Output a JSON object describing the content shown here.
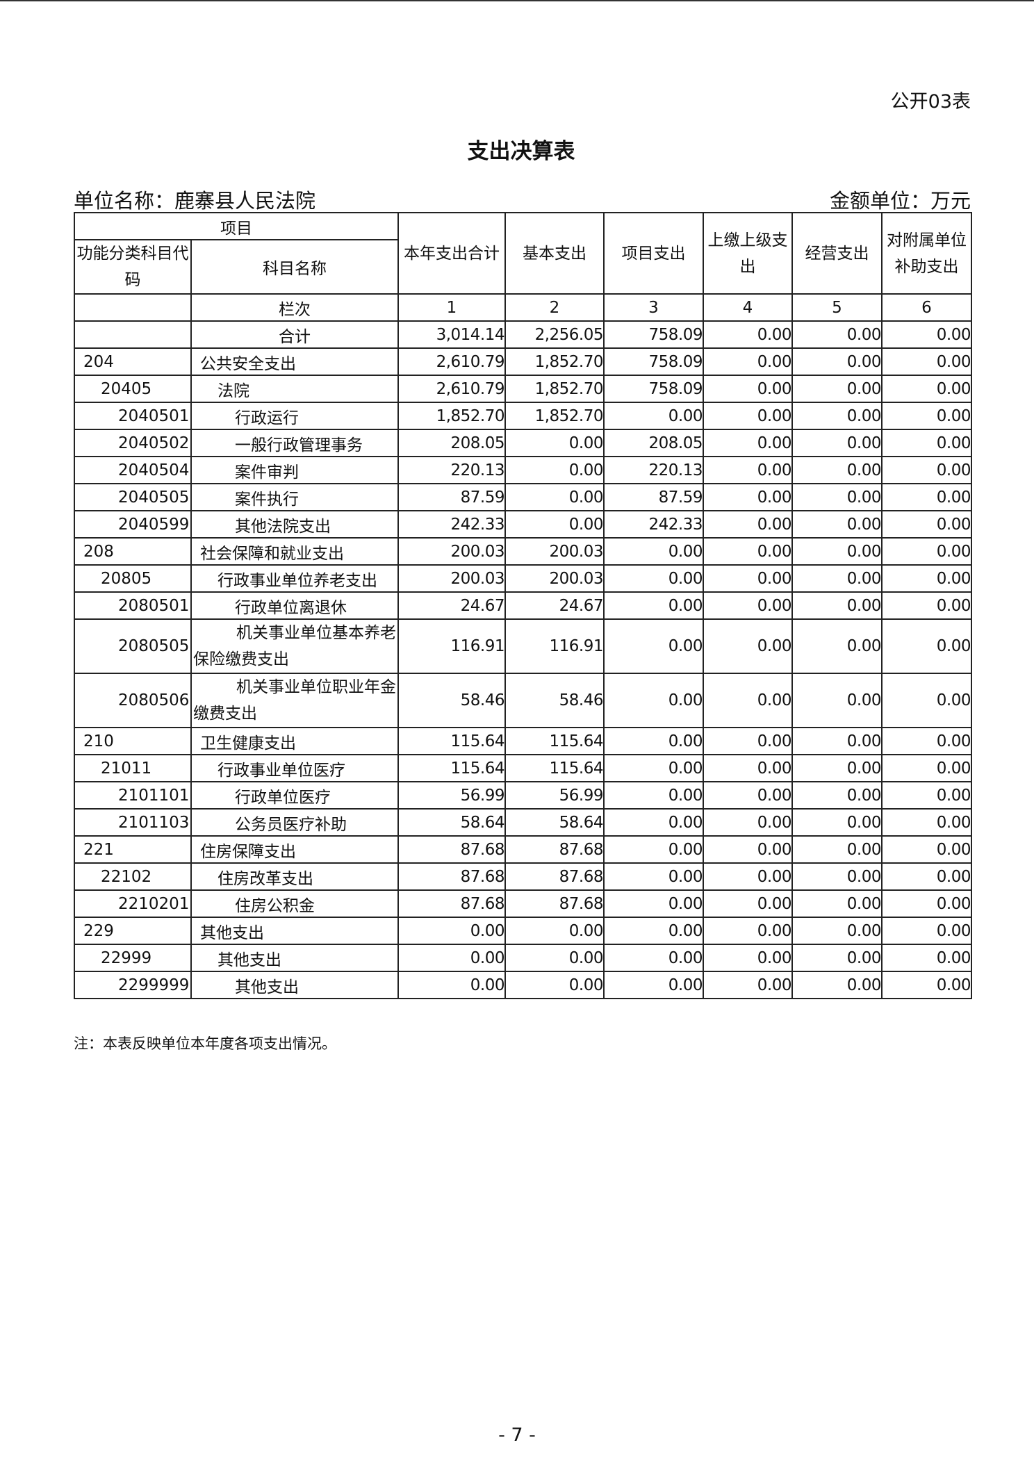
{
  "form_no": "公开03表",
  "title": "支出决算表",
  "unit_label": "单位名称：鹿寨县人民法院",
  "money_unit": "金额单位：万元",
  "header": {
    "item": "项目",
    "code": "功能分类科目代码",
    "name": "科目名称",
    "cols": [
      "本年支出合计",
      "基本支出",
      "项目支出",
      "上缴上级支出",
      "经营支出",
      "对附属单位补助支出"
    ],
    "col_no_label": "栏次",
    "col_nos": [
      "1",
      "2",
      "3",
      "4",
      "5",
      "6"
    ]
  },
  "total": {
    "name": "合计",
    "values": [
      "3,014.14",
      "2,256.05",
      "758.09",
      "0.00",
      "0.00",
      "0.00"
    ]
  },
  "rows": [
    {
      "code": "204",
      "name": "公共安全支出",
      "level": 1,
      "values": [
        "2,610.79",
        "1,852.70",
        "758.09",
        "0.00",
        "0.00",
        "0.00"
      ]
    },
    {
      "code": "20405",
      "name": "法院",
      "level": 2,
      "values": [
        "2,610.79",
        "1,852.70",
        "758.09",
        "0.00",
        "0.00",
        "0.00"
      ]
    },
    {
      "code": "2040501",
      "name": "行政运行",
      "level": 3,
      "values": [
        "1,852.70",
        "1,852.70",
        "0.00",
        "0.00",
        "0.00",
        "0.00"
      ]
    },
    {
      "code": "2040502",
      "name": "一般行政管理事务",
      "level": 3,
      "values": [
        "208.05",
        "0.00",
        "208.05",
        "0.00",
        "0.00",
        "0.00"
      ]
    },
    {
      "code": "2040504",
      "name": "案件审判",
      "level": 3,
      "values": [
        "220.13",
        "0.00",
        "220.13",
        "0.00",
        "0.00",
        "0.00"
      ]
    },
    {
      "code": "2040505",
      "name": "案件执行",
      "level": 3,
      "values": [
        "87.59",
        "0.00",
        "87.59",
        "0.00",
        "0.00",
        "0.00"
      ]
    },
    {
      "code": "2040599",
      "name": "其他法院支出",
      "level": 3,
      "values": [
        "242.33",
        "0.00",
        "242.33",
        "0.00",
        "0.00",
        "0.00"
      ]
    },
    {
      "code": "208",
      "name": "社会保障和就业支出",
      "level": 1,
      "values": [
        "200.03",
        "200.03",
        "0.00",
        "0.00",
        "0.00",
        "0.00"
      ]
    },
    {
      "code": "20805",
      "name": "行政事业单位养老支出",
      "level": 2,
      "values": [
        "200.03",
        "200.03",
        "0.00",
        "0.00",
        "0.00",
        "0.00"
      ]
    },
    {
      "code": "2080501",
      "name": "行政单位离退休",
      "level": 3,
      "values": [
        "24.67",
        "24.67",
        "0.00",
        "0.00",
        "0.00",
        "0.00"
      ]
    },
    {
      "code": "2080505",
      "name": "机关事业单位基本养老保险缴费支出",
      "level": 3,
      "tall": true,
      "values": [
        "116.91",
        "116.91",
        "0.00",
        "0.00",
        "0.00",
        "0.00"
      ]
    },
    {
      "code": "2080506",
      "name": "机关事业单位职业年金缴费支出",
      "level": 3,
      "tall": true,
      "values": [
        "58.46",
        "58.46",
        "0.00",
        "0.00",
        "0.00",
        "0.00"
      ]
    },
    {
      "code": "210",
      "name": "卫生健康支出",
      "level": 1,
      "values": [
        "115.64",
        "115.64",
        "0.00",
        "0.00",
        "0.00",
        "0.00"
      ]
    },
    {
      "code": "21011",
      "name": "行政事业单位医疗",
      "level": 2,
      "values": [
        "115.64",
        "115.64",
        "0.00",
        "0.00",
        "0.00",
        "0.00"
      ]
    },
    {
      "code": "2101101",
      "name": "行政单位医疗",
      "level": 3,
      "values": [
        "56.99",
        "56.99",
        "0.00",
        "0.00",
        "0.00",
        "0.00"
      ]
    },
    {
      "code": "2101103",
      "name": "公务员医疗补助",
      "level": 3,
      "values": [
        "58.64",
        "58.64",
        "0.00",
        "0.00",
        "0.00",
        "0.00"
      ]
    },
    {
      "code": "221",
      "name": "住房保障支出",
      "level": 1,
      "values": [
        "87.68",
        "87.68",
        "0.00",
        "0.00",
        "0.00",
        "0.00"
      ]
    },
    {
      "code": "22102",
      "name": "住房改革支出",
      "level": 2,
      "values": [
        "87.68",
        "87.68",
        "0.00",
        "0.00",
        "0.00",
        "0.00"
      ]
    },
    {
      "code": "2210201",
      "name": "住房公积金",
      "level": 3,
      "values": [
        "87.68",
        "87.68",
        "0.00",
        "0.00",
        "0.00",
        "0.00"
      ]
    },
    {
      "code": "229",
      "name": "其他支出",
      "level": 1,
      "values": [
        "0.00",
        "0.00",
        "0.00",
        "0.00",
        "0.00",
        "0.00"
      ]
    },
    {
      "code": "22999",
      "name": "其他支出",
      "level": 2,
      "values": [
        "0.00",
        "0.00",
        "0.00",
        "0.00",
        "0.00",
        "0.00"
      ]
    },
    {
      "code": "2299999",
      "name": "其他支出",
      "level": 3,
      "values": [
        "0.00",
        "0.00",
        "0.00",
        "0.00",
        "0.00",
        "0.00"
      ]
    }
  ],
  "note": "注：本表反映单位本年度各项支出情况。",
  "page_number": "- 7 -"
}
